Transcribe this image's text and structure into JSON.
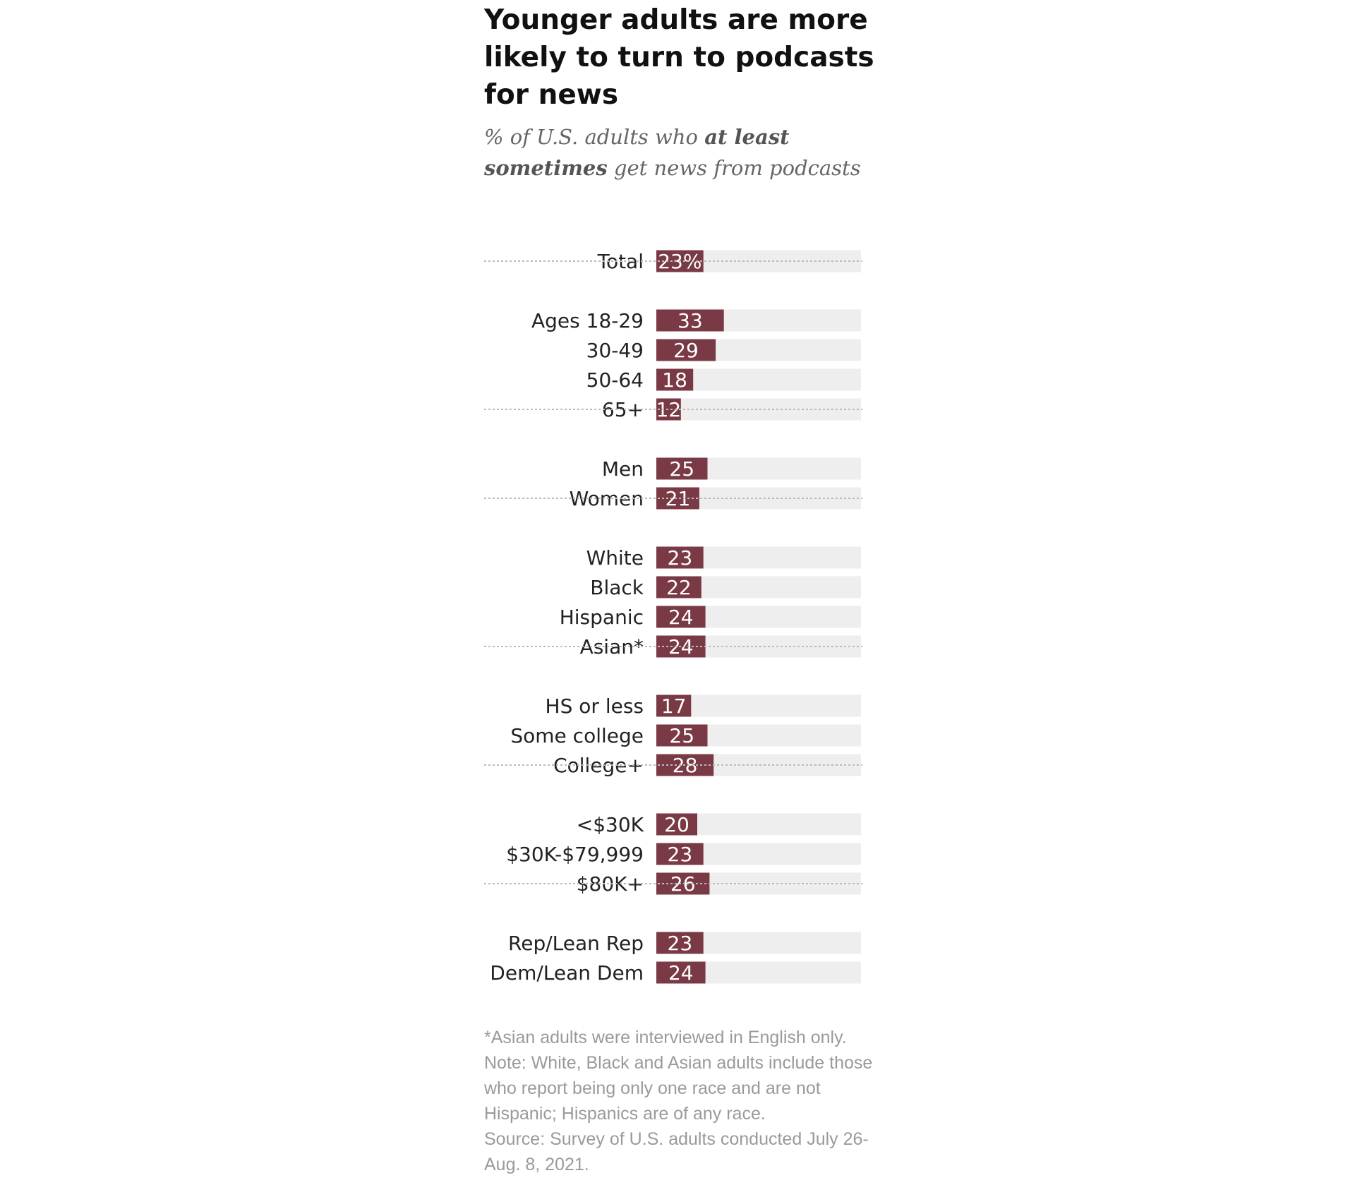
{
  "title": "Younger adults are more likely to turn to podcasts for news",
  "subtitle": {
    "part1": "% of U.S. adults who ",
    "bold1": "at least",
    "bold2": "sometimes",
    "part2": " get news from podcasts"
  },
  "colors": {
    "bar": "#7a3a45",
    "track": "#eeeeee",
    "divider": "#bbbbbb"
  },
  "chart_data": {
    "type": "bar",
    "orientation": "horizontal",
    "xlim": [
      0,
      100
    ],
    "unit": "%",
    "grid": false,
    "legend": "none",
    "groups": [
      {
        "categories": [
          "Total"
        ],
        "values": [
          23
        ],
        "labels": [
          "23%"
        ]
      },
      {
        "categories": [
          "Ages 18-29",
          "30-49",
          "50-64",
          "65+"
        ],
        "values": [
          33,
          29,
          18,
          12
        ],
        "labels": [
          "33",
          "29",
          "18",
          "12"
        ]
      },
      {
        "categories": [
          "Men",
          "Women"
        ],
        "values": [
          25,
          21
        ],
        "labels": [
          "25",
          "21"
        ]
      },
      {
        "categories": [
          "White",
          "Black",
          "Hispanic",
          "Asian*"
        ],
        "values": [
          23,
          22,
          24,
          24
        ],
        "labels": [
          "23",
          "22",
          "24",
          "24"
        ]
      },
      {
        "categories": [
          "HS or less",
          "Some college",
          "College+"
        ],
        "values": [
          17,
          25,
          28
        ],
        "labels": [
          "17",
          "25",
          "28"
        ]
      },
      {
        "categories": [
          "<$30K",
          "$30K-$79,999",
          "$80K+"
        ],
        "values": [
          20,
          23,
          26
        ],
        "labels": [
          "20",
          "23",
          "26"
        ]
      },
      {
        "categories": [
          "Rep/Lean Rep",
          "Dem/Lean Dem"
        ],
        "values": [
          23,
          24
        ],
        "labels": [
          "23",
          "24"
        ]
      }
    ]
  },
  "notes": {
    "asterisk": "*Asian adults were interviewed in English only.",
    "note": "Note: White, Black and Asian adults include those who report being only one race and are not Hispanic; Hispanics are of any race.",
    "source": "Source: Survey of U.S. adults conducted July 26-Aug. 8, 2021."
  }
}
